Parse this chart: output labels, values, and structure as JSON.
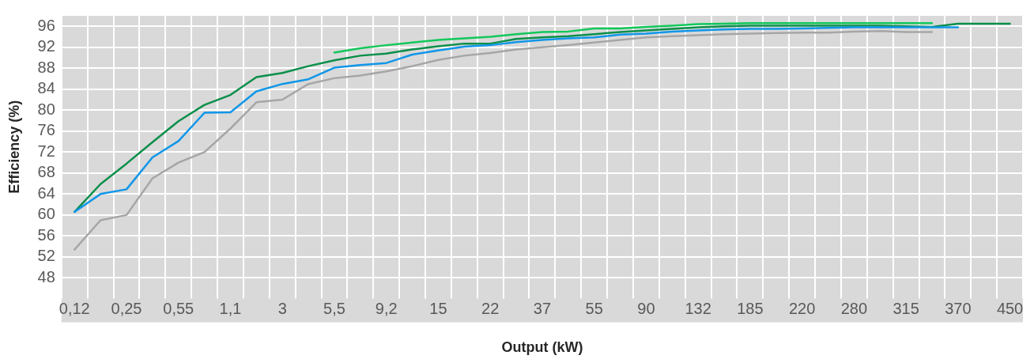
{
  "chart_data": {
    "type": "line",
    "xlabel": "Output (kW)",
    "ylabel": "Efficiency (%)",
    "categories": [
      "0,12",
      null,
      "0,25",
      null,
      "0,55",
      null,
      "1,1",
      null,
      "3",
      null,
      "5,5",
      null,
      "9,2",
      null,
      "15",
      null,
      "22",
      null,
      "37",
      null,
      "55",
      null,
      "90",
      null,
      "132",
      null,
      "185",
      null,
      "220",
      null,
      "280",
      null,
      "315",
      null,
      "370",
      null,
      "450"
    ],
    "ylim": [
      48,
      98
    ],
    "yticks": [
      48,
      52,
      56,
      60,
      64,
      68,
      72,
      76,
      80,
      84,
      88,
      92,
      96
    ],
    "grid": true,
    "legend": false,
    "marker": "none",
    "line_style": "solid",
    "series": [
      {
        "color": "#a6a6a6",
        "values": [
          53.4,
          59.0,
          60.0,
          67.0,
          70.0,
          72.0,
          76.5,
          81.5,
          82.0,
          85.0,
          86.1,
          86.6,
          87.4,
          88.4,
          89.6,
          90.4,
          90.9,
          91.6,
          92.0,
          92.4,
          92.9,
          93.4,
          93.9,
          94.1,
          94.3,
          94.5,
          94.6,
          94.7,
          94.8,
          94.8,
          95.0,
          95.1,
          94.9,
          94.9,
          null,
          null,
          null
        ]
      },
      {
        "color": "#1096e8",
        "values": [
          60.6,
          64.0,
          64.9,
          71.0,
          74.1,
          79.5,
          79.6,
          83.6,
          85.0,
          85.9,
          88.1,
          88.6,
          89.0,
          90.6,
          91.4,
          92.1,
          92.4,
          93.0,
          93.4,
          93.7,
          93.9,
          94.4,
          94.6,
          95.0,
          95.2,
          95.4,
          95.5,
          95.5,
          95.6,
          95.7,
          95.8,
          95.8,
          95.8,
          95.8,
          95.8,
          null,
          null
        ]
      },
      {
        "color": "#0a8f4a",
        "values": [
          60.6,
          65.9,
          69.8,
          73.9,
          77.9,
          81.0,
          82.9,
          86.3,
          87.1,
          88.4,
          89.5,
          90.4,
          90.8,
          91.6,
          92.2,
          92.7,
          92.7,
          93.6,
          93.9,
          94.1,
          94.5,
          94.9,
          95.2,
          95.5,
          95.8,
          96.0,
          96.1,
          96.1,
          96.1,
          96.1,
          96.1,
          96.1,
          96.0,
          95.9,
          96.5,
          96.5,
          96.5
        ]
      },
      {
        "color": "#12c85a",
        "values": [
          null,
          null,
          null,
          null,
          null,
          null,
          null,
          null,
          null,
          null,
          91.0,
          91.8,
          92.4,
          92.9,
          93.4,
          93.7,
          94.0,
          94.5,
          94.9,
          95.0,
          95.6,
          95.6,
          95.9,
          96.1,
          96.4,
          96.5,
          96.6,
          96.6,
          96.6,
          96.6,
          96.6,
          96.6,
          96.6,
          96.6,
          null,
          null,
          null
        ]
      }
    ]
  }
}
